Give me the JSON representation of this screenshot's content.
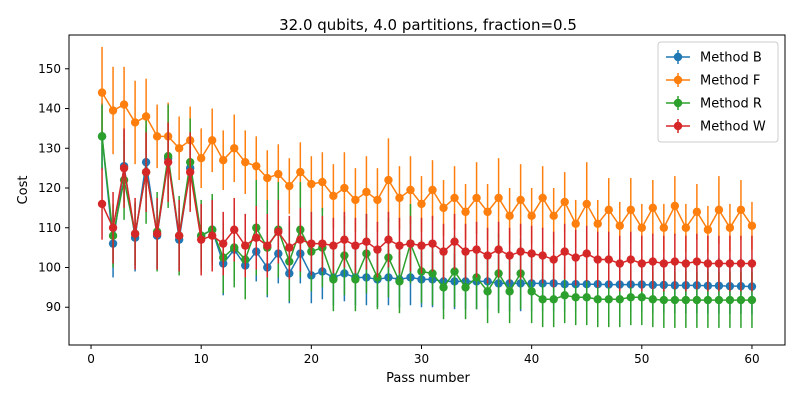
{
  "chart_data": {
    "type": "line",
    "title": "32.0 qubits, 4.0 partitions, fraction=0.5",
    "xlabel": "Pass number",
    "ylabel": "Cost",
    "xlim": [
      -2,
      63
    ],
    "ylim": [
      80.5,
      158.5
    ],
    "xticks": [
      0,
      10,
      20,
      30,
      40,
      50,
      60
    ],
    "yticks": [
      90,
      100,
      110,
      120,
      130,
      140,
      150
    ],
    "grid": false,
    "legend_position": "top-right",
    "x": [
      1,
      2,
      3,
      4,
      5,
      6,
      7,
      8,
      9,
      10,
      11,
      12,
      13,
      14,
      15,
      16,
      17,
      18,
      19,
      20,
      21,
      22,
      23,
      24,
      25,
      26,
      27,
      28,
      29,
      30,
      31,
      32,
      33,
      34,
      35,
      36,
      37,
      38,
      39,
      40,
      41,
      42,
      43,
      44,
      45,
      46,
      47,
      48,
      49,
      50,
      51,
      52,
      53,
      54,
      55,
      56,
      57,
      58,
      59,
      60
    ],
    "series": [
      {
        "name": "Method B",
        "color": "#1f77b4",
        "values": [
          133,
          106,
          125.5,
          107.5,
          126.5,
          108,
          127.5,
          107,
          125,
          108,
          109.5,
          101,
          104.5,
          100.5,
          104,
          100,
          103.5,
          98.5,
          103.5,
          98,
          99,
          97.5,
          98.5,
          97.5,
          97.5,
          97,
          97.5,
          97,
          97.5,
          97,
          97,
          96.5,
          96.5,
          96.5,
          96.5,
          96.5,
          96,
          96,
          96,
          96,
          96,
          96,
          95.8,
          95.8,
          95.8,
          95.8,
          95.7,
          95.7,
          95.7,
          95.7,
          95.6,
          95.6,
          95.5,
          95.5,
          95.5,
          95.4,
          95.4,
          95.3,
          95.3,
          95.2
        ],
        "errors": [
          8.5,
          8.5,
          9,
          8.5,
          9,
          8.5,
          9,
          8,
          9,
          8,
          8,
          8,
          7.5,
          7.5,
          7.5,
          7.5,
          7.5,
          7.5,
          7.5,
          7,
          7,
          7,
          7,
          7,
          7,
          7,
          7,
          7,
          7,
          7,
          7,
          7,
          7,
          7,
          7,
          7,
          7,
          7,
          7,
          7,
          7,
          7,
          7,
          7,
          7,
          7,
          7,
          7,
          7,
          7,
          7,
          7,
          7,
          7,
          7,
          7,
          7,
          7,
          7,
          7
        ]
      },
      {
        "name": "Method F",
        "color": "#ff7f0e",
        "values": [
          144,
          139.5,
          141,
          136.5,
          138,
          133,
          133,
          130,
          132,
          127.5,
          132,
          127,
          130,
          126.5,
          125.5,
          122.5,
          123.5,
          120.5,
          124,
          121,
          121.5,
          118,
          120,
          117,
          119,
          117,
          122,
          117.5,
          119.5,
          116,
          119.5,
          115,
          117.5,
          114,
          117.5,
          114,
          117.5,
          113,
          117,
          113,
          117.5,
          113,
          116.5,
          111,
          116,
          111,
          114.5,
          110.5,
          114.5,
          110,
          115,
          110,
          115.5,
          110,
          114,
          109.5,
          114.5,
          110,
          114.5,
          110.5
        ],
        "errors": [
          11.5,
          11,
          9.5,
          10.5,
          9.5,
          8,
          8.5,
          8,
          8.5,
          7.5,
          8,
          7.5,
          8.5,
          8,
          7.5,
          7,
          7.5,
          7,
          7.5,
          7,
          7.5,
          8,
          9,
          8,
          9,
          8,
          10.5,
          8,
          8.5,
          7,
          7.5,
          7,
          8,
          7,
          9,
          7,
          10,
          7,
          9,
          7,
          8,
          7,
          7.5,
          6,
          10.5,
          6,
          8,
          6,
          8,
          6,
          7,
          6,
          7.5,
          6,
          7,
          6,
          8.5,
          6,
          7.5,
          6
        ]
      },
      {
        "name": "Method R",
        "color": "#2ca02c",
        "values": [
          133,
          108,
          122,
          108.5,
          124,
          109,
          128,
          108,
          126.5,
          108,
          109.5,
          102.5,
          105,
          102,
          110,
          105,
          109.5,
          101.5,
          109.5,
          104,
          105,
          97,
          103,
          97,
          103.5,
          97.5,
          102.5,
          96.5,
          106,
          99,
          98.5,
          95,
          99,
          95,
          97.5,
          94,
          98.5,
          94,
          98.5,
          94,
          92,
          92,
          93,
          92.5,
          92.5,
          92,
          92,
          92,
          92.5,
          92.5,
          92,
          91.8,
          91.8,
          91.8,
          91.8,
          91.8,
          91.8,
          91.8,
          91.8,
          91.8
        ],
        "errors": [
          8,
          8,
          10,
          8,
          13,
          10,
          13,
          10,
          11,
          9,
          9,
          9,
          10,
          10,
          12,
          12,
          12,
          10,
          12,
          10,
          10,
          8,
          10,
          8,
          10,
          8,
          10,
          8,
          10,
          8,
          8,
          8,
          9,
          8,
          8,
          8,
          10,
          8,
          9,
          8,
          7,
          7,
          7,
          7,
          7,
          7,
          7,
          7,
          7,
          7,
          7,
          7,
          7,
          7,
          7,
          7,
          7,
          7,
          7,
          7
        ]
      },
      {
        "name": "Method W",
        "color": "#d62728",
        "values": [
          116,
          110,
          125,
          108.5,
          124,
          108.5,
          126.5,
          108,
          124,
          107,
          108,
          106,
          109.5,
          105.5,
          107.5,
          105.5,
          109,
          105,
          107,
          106,
          106,
          105.5,
          107,
          105.5,
          106.5,
          104.5,
          107,
          105.5,
          106,
          105.5,
          106,
          104,
          106.5,
          104,
          104.5,
          103,
          104.5,
          103,
          104,
          103.5,
          103,
          102,
          104,
          102.5,
          103.5,
          102,
          102,
          101,
          102,
          101,
          101.5,
          101,
          101.5,
          101,
          101.5,
          101,
          101,
          101,
          101,
          101
        ],
        "errors": [
          9,
          9,
          10,
          9,
          10,
          9,
          10,
          9,
          10,
          9,
          9,
          8,
          8,
          8,
          8,
          8,
          8,
          8,
          8,
          8,
          7,
          7,
          7,
          7,
          7,
          7,
          7,
          7,
          7,
          7,
          7,
          7,
          7,
          7,
          7,
          7,
          7,
          7,
          7,
          7,
          7,
          7,
          7,
          7,
          7,
          7,
          7,
          7,
          7,
          7,
          7,
          7,
          7,
          7,
          7,
          7,
          7,
          7,
          7,
          7
        ]
      }
    ]
  }
}
